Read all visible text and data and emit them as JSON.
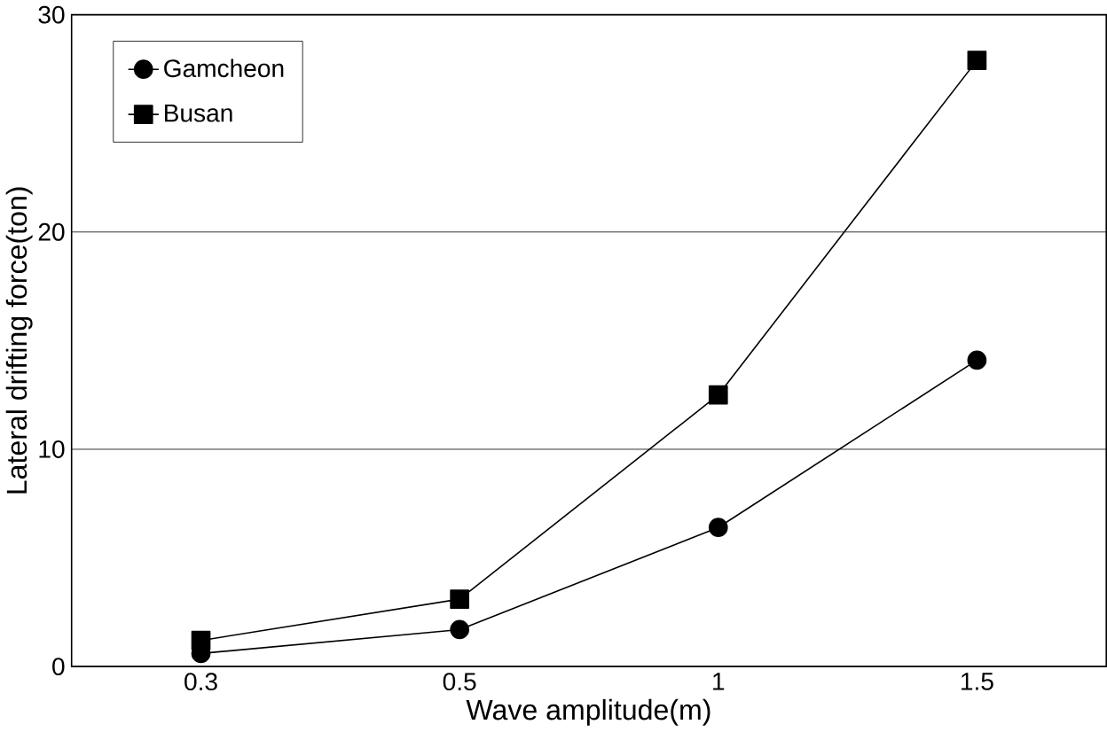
{
  "chart_data": {
    "type": "line",
    "xlabel": "Wave amplitude(m)",
    "ylabel": "Lateral drifting force(ton)",
    "categories": [
      "0.3",
      "0.5",
      "1",
      "1.5"
    ],
    "series": [
      {
        "name": "Gamcheon",
        "color": "#000000",
        "marker": "circle",
        "values": [
          0.6,
          1.7,
          6.4,
          14.1
        ]
      },
      {
        "name": "Busan",
        "color": "#000000",
        "marker": "square",
        "values": [
          1.2,
          3.1,
          12.5,
          27.9
        ]
      }
    ],
    "ylim": [
      0,
      30
    ],
    "yticks": [
      0,
      10,
      20,
      30
    ],
    "grid": "y",
    "legend": "top left",
    "line_style": "solid"
  }
}
